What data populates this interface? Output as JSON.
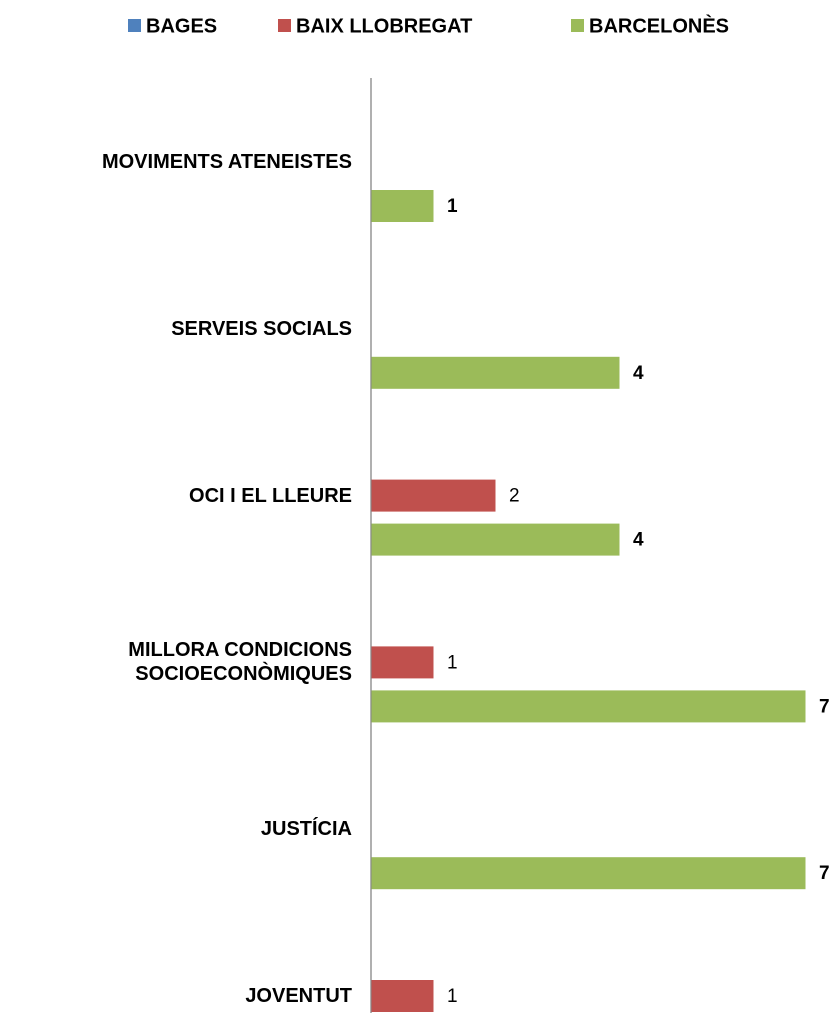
{
  "chart_data": {
    "type": "bar",
    "orientation": "horizontal",
    "categories": [
      "MOVIMENTS ATENEISTES",
      "SERVEIS SOCIALS",
      "OCI I EL LLEURE",
      "MILLORA CONDICIONS SOCIOECONÒMIQUES",
      "JUSTÍCIA",
      "JOVENTUT"
    ],
    "series": [
      {
        "name": "BAGES",
        "color": "#4f81bd",
        "values": [
          null,
          null,
          null,
          null,
          null,
          null
        ]
      },
      {
        "name": "BAIX LLOBREGAT",
        "color": "#c0504d",
        "values": [
          null,
          null,
          2,
          1,
          null,
          1
        ]
      },
      {
        "name": "BARCELONÈS",
        "color": "#9bbb59",
        "values": [
          1,
          4,
          4,
          7,
          7,
          null
        ]
      }
    ],
    "legend": "top"
  }
}
